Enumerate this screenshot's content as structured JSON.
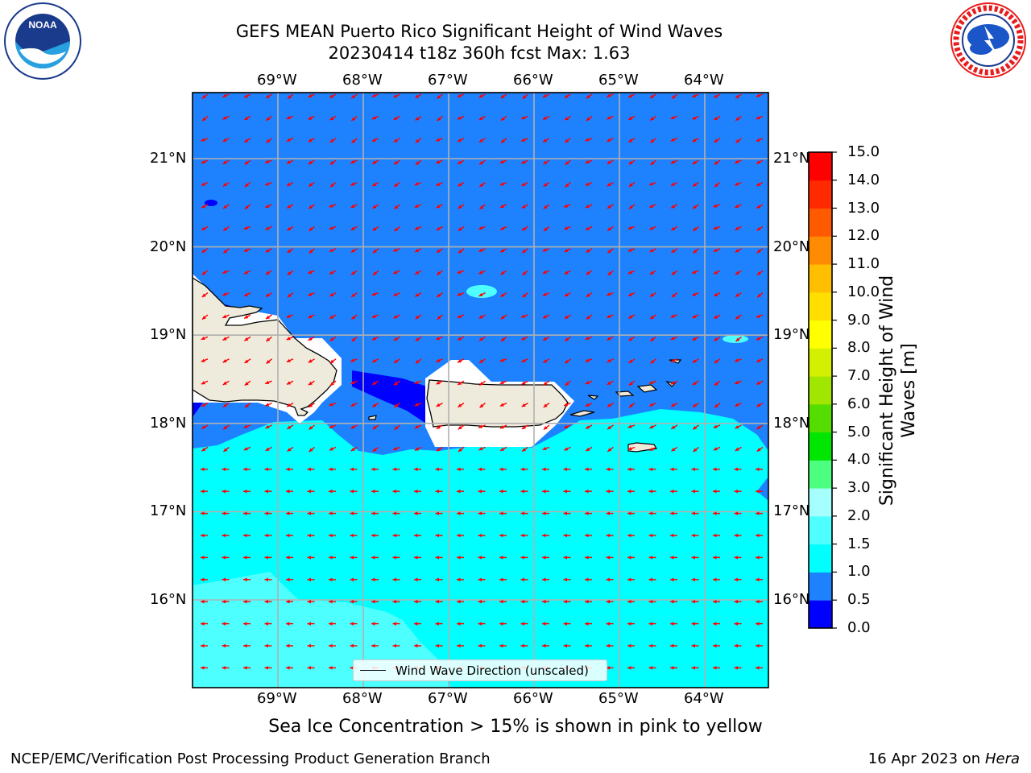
{
  "header": {
    "title_line1": "GEFS MEAN Puerto Rico Significant Height of Wind Waves",
    "title_line2": "20230414 t18z 360h fcst   Max: 1.63"
  },
  "map": {
    "lon_labels": [
      "69°W",
      "68°W",
      "67°W",
      "66°W",
      "65°W",
      "64°W"
    ],
    "lat_labels": [
      "21°N",
      "20°N",
      "19°N",
      "18°N",
      "17°N",
      "16°N"
    ],
    "legend": "Wind Wave Direction (unscaled)",
    "arrow_color": "#ff0000",
    "land_color": "#efebdc"
  },
  "colorbar": {
    "label": "Significant Height of Wind Waves [m]",
    "ticks": [
      "0.0",
      "0.5",
      "1.0",
      "1.5",
      "2.0",
      "3.0",
      "4.0",
      "5.0",
      "6.0",
      "7.0",
      "8.0",
      "9.0",
      "10.0",
      "11.0",
      "12.0",
      "13.0",
      "14.0",
      "15.0"
    ],
    "colors": [
      "#0000ff",
      "#1e82ff",
      "#00ffff",
      "#4dffff",
      "#a6ffff",
      "#4dff80",
      "#00e600",
      "#55dd00",
      "#a0e600",
      "#d2f000",
      "#ffff00",
      "#ffdf00",
      "#ffbf00",
      "#ff8c00",
      "#ff5a00",
      "#ff2a00",
      "#ff0000"
    ]
  },
  "footer": {
    "sea_ice_note": "Sea Ice Concentration > 15% is shown in pink to yellow",
    "branch": "NCEP/EMC/Verification Post Processing Product Generation Branch",
    "date": "16 Apr 2023 on ",
    "host": "Hera"
  }
}
